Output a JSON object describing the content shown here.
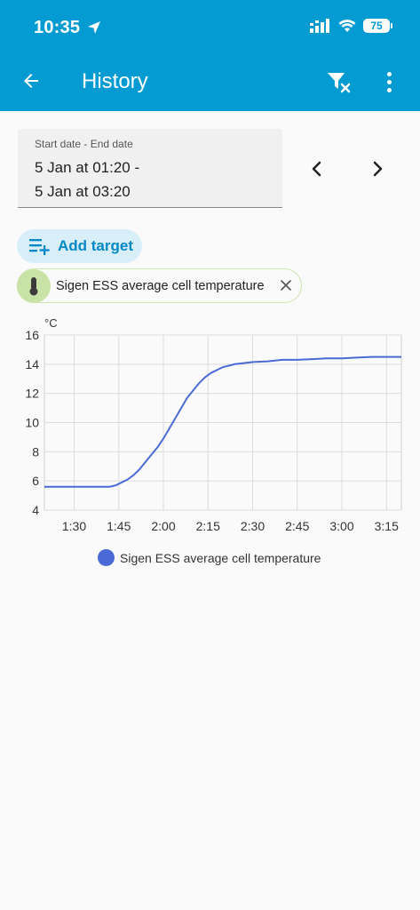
{
  "status_bar": {
    "time": "10:35",
    "battery": "75"
  },
  "app_bar": {
    "title": "History"
  },
  "date_range": {
    "label": "Start date - End date",
    "start": "5 Jan at 01:20 -",
    "end": "5 Jan at 03:20"
  },
  "add_target": {
    "label": "Add target"
  },
  "entity_chip": {
    "label": "Sigen ESS average cell temperature"
  },
  "colors": {
    "header": "#039bd1",
    "series": "#4a6bd6",
    "chip_border": "#cfe6b0",
    "chip_icon_bg": "#c9e2a6",
    "add_target_bg": "#d8eef8"
  },
  "chart_data": {
    "type": "line",
    "unit_label": "°C",
    "ylim": [
      4,
      16
    ],
    "yticks": [
      4,
      6,
      8,
      10,
      12,
      14,
      16
    ],
    "xlim": [
      "01:20",
      "03:20"
    ],
    "xticks": [
      "1:30",
      "1:45",
      "2:00",
      "2:15",
      "2:30",
      "2:45",
      "3:00",
      "3:15"
    ],
    "grid": true,
    "legend_position": "bottom",
    "series": [
      {
        "name": "Sigen ESS average cell temperature",
        "x": [
          "01:20",
          "01:30",
          "01:38",
          "01:42",
          "01:44",
          "01:46",
          "01:48",
          "01:50",
          "01:52",
          "01:54",
          "01:56",
          "01:58",
          "02:00",
          "02:02",
          "02:04",
          "02:06",
          "02:08",
          "02:10",
          "02:12",
          "02:14",
          "02:16",
          "02:18",
          "02:20",
          "02:22",
          "02:24",
          "02:26",
          "02:28",
          "02:30",
          "02:35",
          "02:40",
          "02:45",
          "02:50",
          "02:55",
          "03:00",
          "03:05",
          "03:10",
          "03:15",
          "03:20"
        ],
        "y": [
          5.6,
          5.6,
          5.6,
          5.6,
          5.7,
          5.9,
          6.1,
          6.4,
          6.8,
          7.3,
          7.8,
          8.3,
          8.9,
          9.6,
          10.3,
          11.0,
          11.7,
          12.2,
          12.7,
          13.1,
          13.4,
          13.6,
          13.8,
          13.9,
          14.0,
          14.05,
          14.1,
          14.15,
          14.2,
          14.3,
          14.3,
          14.35,
          14.4,
          14.4,
          14.45,
          14.5,
          14.5,
          14.5
        ]
      }
    ]
  }
}
